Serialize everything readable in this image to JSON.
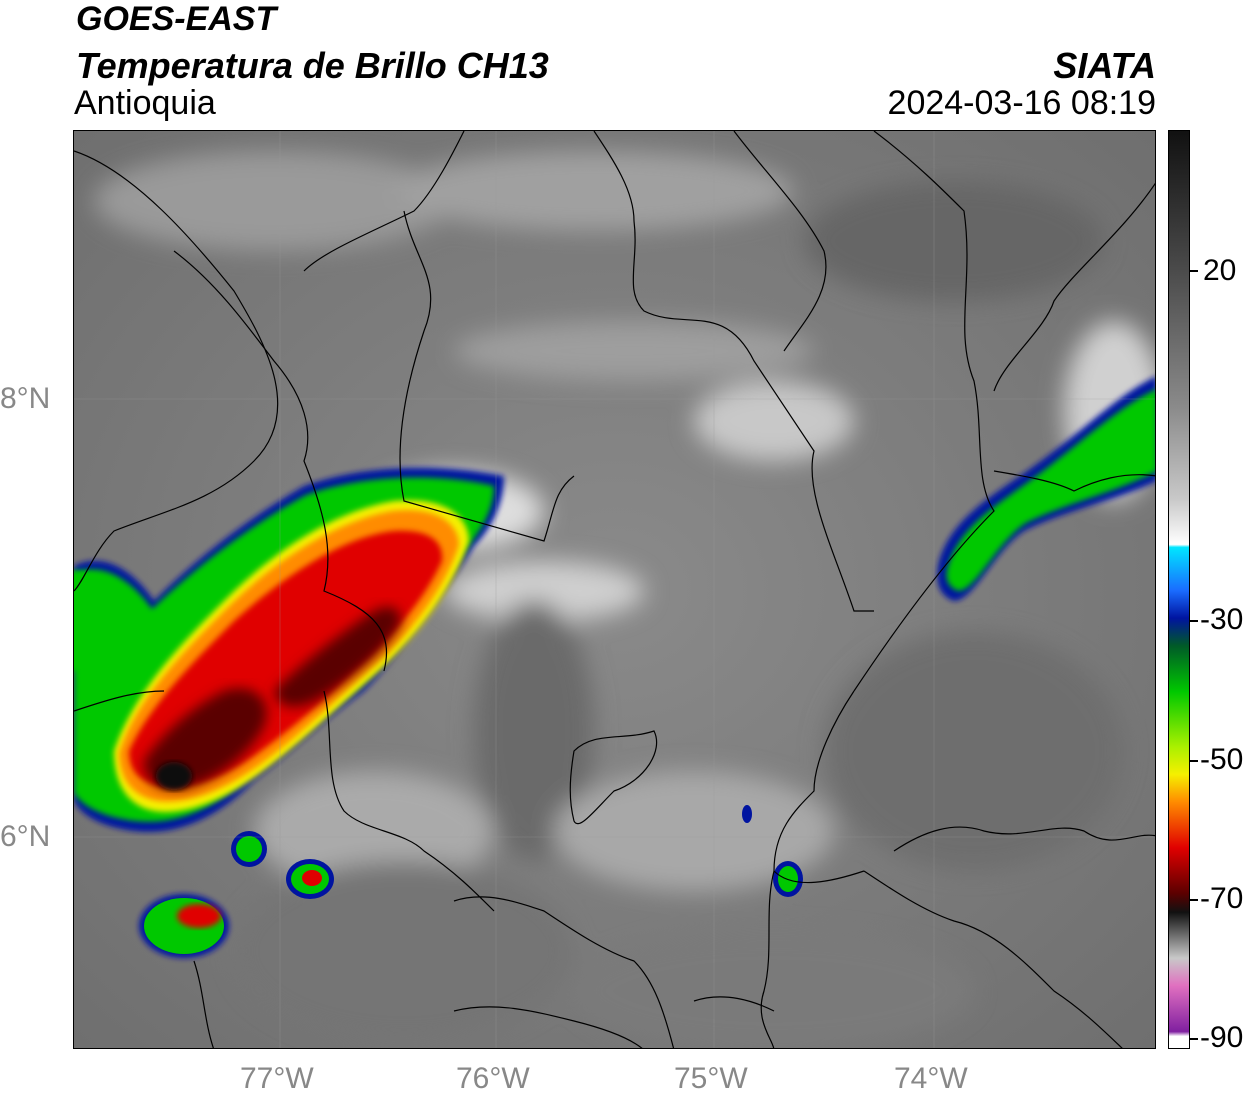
{
  "header": {
    "satellite": "GOES-EAST",
    "product": "Temperatura de Brillo CH13",
    "region": "Antioquia",
    "organization": "SIATA",
    "datetime": "2024-03-16 08:19"
  },
  "map": {
    "lat_labels": [
      "8°N",
      "6°N"
    ],
    "lon_labels": [
      "77°W",
      "76°W",
      "75°W",
      "74°W"
    ]
  },
  "colorbar": {
    "tick_labels": [
      "20",
      "-30",
      "-50",
      "-70",
      "-90"
    ],
    "colors": {
      "magenta": "#c23cc0",
      "black": "#111111",
      "dark_red": "#5a0000",
      "red": "#e00000",
      "orange": "#ff8c00",
      "yellow": "#f5f000",
      "green": "#00c800",
      "dark_green": "#005a28",
      "blue": "#0014a0",
      "cyan": "#00e6ff",
      "white": "#ffffff",
      "gray": "#808080"
    }
  }
}
